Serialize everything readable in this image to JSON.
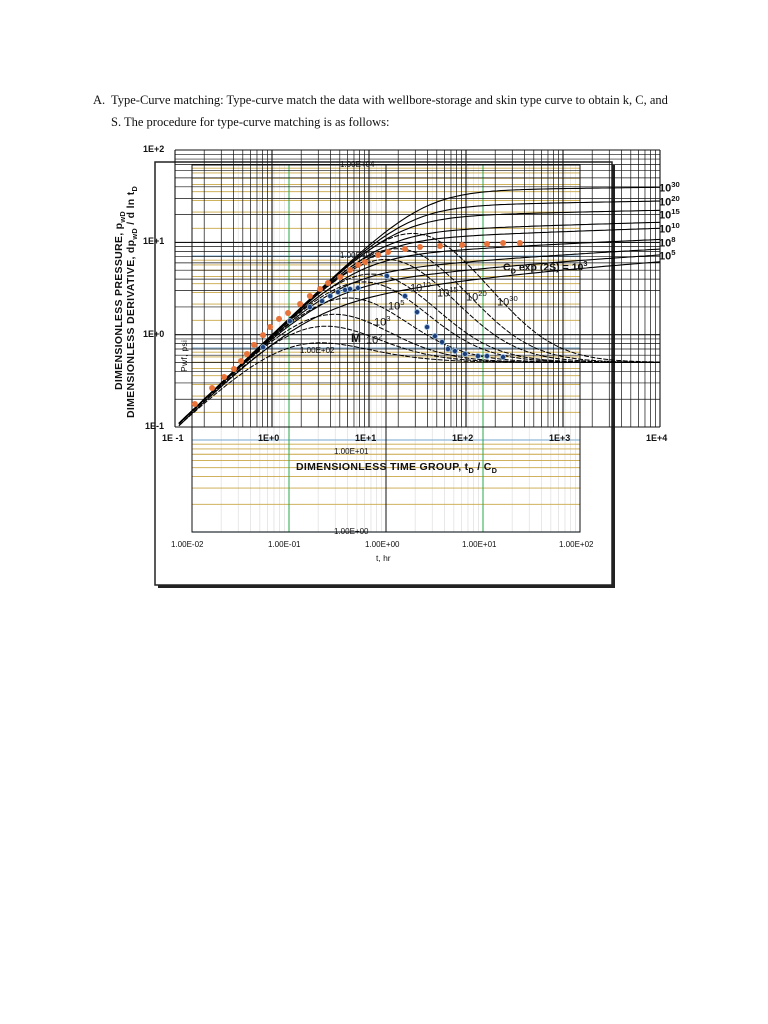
{
  "paragraph": {
    "marker": "A.",
    "line1": "Type-Curve matching: Type-curve match the data with wellbore-storage and skin type curve to obtain k, C, and",
    "line2": "S.  The procedure for type-curve matching is as follows:"
  },
  "type_curve": {
    "y_axis_label_1": "DIMENSIONLESS PRESSURE, p",
    "y_axis_label_1_sub": "wD",
    "y_axis_label_2": "DIMENSIONLESS DERIVATIVE, dp",
    "y_axis_label_2_sub": "wD",
    "y_axis_label_2_tail": " / d ln t",
    "y_axis_label_2_tail_sub": "D",
    "x_axis_label": "DIMENSIONLESS TIME GROUP, t",
    "x_axis_label_sub1": "D",
    "x_axis_label_mid": " / C",
    "x_axis_label_sub2": "D",
    "x_ticks": [
      "1E -1",
      "1E+0",
      "1E+1",
      "1E+2",
      "1E+3",
      "1E+4"
    ],
    "y_ticks": [
      "1E+2",
      "1E+1",
      "1E+0",
      "1E-1"
    ],
    "right_labels": [
      {
        "base": "10",
        "exp": "30"
      },
      {
        "base": "10",
        "exp": "20"
      },
      {
        "base": "10",
        "exp": "15"
      },
      {
        "base": "10",
        "exp": "10"
      },
      {
        "base": "10",
        "exp": "8"
      },
      {
        "base": "10",
        "exp": "5"
      }
    ],
    "inner_labels": [
      {
        "base": "10",
        "exp": "10"
      },
      {
        "base": "10",
        "exp": "15"
      },
      {
        "base": "10",
        "exp": "20"
      },
      {
        "base": "10",
        "exp": "30"
      },
      {
        "base": "10",
        "exp": "5"
      },
      {
        "base": "10",
        "exp": "3"
      },
      {
        "base": "10",
        "exp": "2"
      }
    ],
    "match_label": "M",
    "parameter_label": "C",
    "parameter_label_sub": "D",
    "parameter_label_tail": " exp (2S) = 10",
    "parameter_label_exp": "3"
  },
  "overlay": {
    "x_ticks": [
      "1.00E-02",
      "1.00E-01",
      "1.00E+00",
      "1.00E+01",
      "1.00E+02"
    ],
    "y_ticks": [
      "1.00E+04",
      "1.00E+03",
      "1.00E+02",
      "1.00E+01",
      "1.00E+00"
    ],
    "x_axis_label": "t, hr",
    "y_axis_label": "Pwf, psi"
  },
  "colors": {
    "pressure_points": "#e8743b",
    "derivative_points": "#1f3f7a",
    "overlay_grid": "#c9a645",
    "overlay_major": "#8fb7d6",
    "overlay_green": "#2aa84a",
    "curve": "#000000"
  },
  "chart_data": {
    "type": "scatter",
    "x_scale": "log",
    "y_scale": "log",
    "type_curve_xlim": [
      0.1,
      10000
    ],
    "type_curve_ylim": [
      0.1,
      100
    ],
    "type_curve_parameters_CDe2S": [
      1e+30,
      1e+20,
      1000000000000000.0,
      10000000000.0,
      100000000.0,
      100000.0,
      1000.0,
      100.0,
      10.0
    ],
    "data_xlim": [
      0.01,
      100
    ],
    "data_ylim": [
      1,
      10000
    ],
    "grid": true,
    "pressure": {
      "t": [
        0.0107,
        0.0161,
        0.0214,
        0.0271,
        0.032,
        0.0369,
        0.0436,
        0.054,
        0.0637,
        0.0789,
        0.0977,
        0.13,
        0.164,
        0.209,
        0.252,
        0.336,
        0.425,
        0.515,
        0.608,
        0.827,
        1.05,
        1.57,
        2.24,
        3.6,
        6.08,
        11,
        16.1,
        24
      ],
      "dp": [
        24.6,
        36.7,
        48.4,
        59.2,
        72.3,
        86.1,
        108,
        138,
        169,
        207,
        240,
        301,
        367,
        438,
        509,
        591,
        705,
        798,
        861,
        1026,
        1105,
        1191,
        1253,
        1285,
        1318,
        1350,
        1384,
        1384
      ]
    },
    "derivative": {
      "t": [
        0.054,
        0.102,
        0.164,
        0.219,
        0.266,
        0.32,
        0.378,
        0.425,
        0.515,
        1.02,
        1.57,
        2.09,
        2.65,
        3.2,
        3.78,
        4.35,
        5.14,
        6.52,
        8.87,
        11,
        16.1
      ],
      "dp": [
        102,
        196,
        279,
        324,
        367,
        406,
        427,
        437,
        449,
        607,
        367,
        246,
        169,
        135,
        116,
        97.5,
        92.7,
        86.1,
        81.8,
        81.8,
        79.8
      ]
    }
  }
}
